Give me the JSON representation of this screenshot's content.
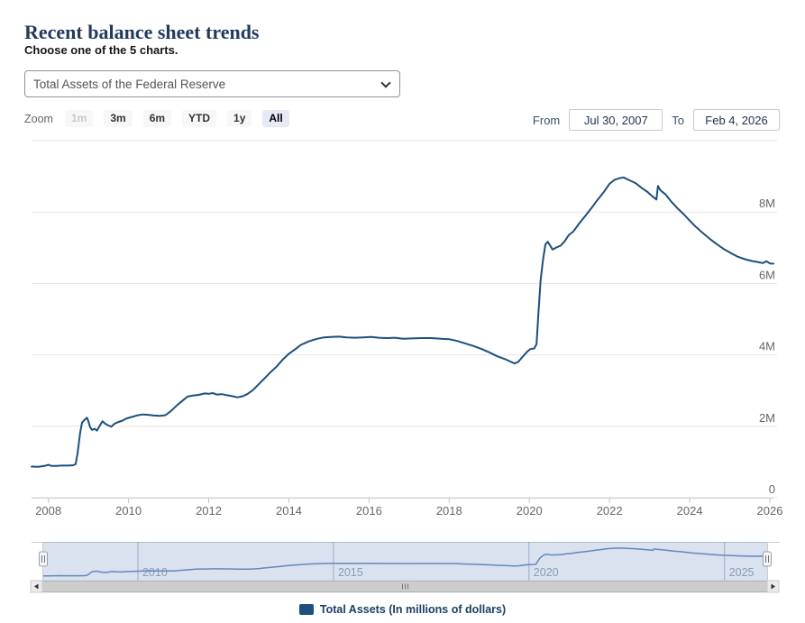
{
  "header": {
    "title": "Recent balance sheet trends",
    "subtitle": "Choose one of the 5 charts."
  },
  "chart_selector": {
    "selected": "Total Assets of the Federal Reserve",
    "options": [
      "Total Assets of the Federal Reserve"
    ]
  },
  "toolbar": {
    "zoom_label": "Zoom",
    "buttons": [
      {
        "label": "1m",
        "state": "disabled"
      },
      {
        "label": "3m",
        "state": "normal"
      },
      {
        "label": "6m",
        "state": "normal"
      },
      {
        "label": "YTD",
        "state": "normal"
      },
      {
        "label": "1y",
        "state": "normal"
      },
      {
        "label": "All",
        "state": "selected"
      }
    ],
    "range": {
      "from_label": "From",
      "from_value": "Jul 30, 2007",
      "to_label": "To",
      "to_value": "Feb 4, 2026"
    }
  },
  "chart_data": {
    "type": "line",
    "title": "Total Assets of the Federal Reserve",
    "xlabel": "",
    "ylabel": "",
    "units": "millions of dollars",
    "y_axis_side": "right",
    "grid": true,
    "x_range": [
      2007.58,
      2026.09
    ],
    "y_range": [
      0,
      10000000
    ],
    "x_ticks": [
      2008,
      2010,
      2012,
      2014,
      2016,
      2018,
      2020,
      2022,
      2024,
      2026
    ],
    "y_ticks": [
      {
        "value": 0,
        "label": "0"
      },
      {
        "value": 2000000,
        "label": "2M"
      },
      {
        "value": 4000000,
        "label": "4M"
      },
      {
        "value": 6000000,
        "label": "6M"
      },
      {
        "value": 8000000,
        "label": "8M"
      },
      {
        "value": 10000000,
        "label": ""
      }
    ],
    "legend_position": "bottom-center",
    "series": [
      {
        "name": "Total Assets (In millions of dollars)",
        "color": "#1c4f7e",
        "points": [
          [
            2007.58,
            870000
          ],
          [
            2007.75,
            865000
          ],
          [
            2007.9,
            890000
          ],
          [
            2008.0,
            920000
          ],
          [
            2008.08,
            890000
          ],
          [
            2008.2,
            890000
          ],
          [
            2008.33,
            900000
          ],
          [
            2008.5,
            900000
          ],
          [
            2008.62,
            910000
          ],
          [
            2008.68,
            940000
          ],
          [
            2008.73,
            1250000
          ],
          [
            2008.79,
            1800000
          ],
          [
            2008.84,
            2100000
          ],
          [
            2008.9,
            2180000
          ],
          [
            2008.96,
            2240000
          ],
          [
            2009.0,
            2140000
          ],
          [
            2009.04,
            1980000
          ],
          [
            2009.09,
            1900000
          ],
          [
            2009.15,
            1930000
          ],
          [
            2009.21,
            1880000
          ],
          [
            2009.29,
            2030000
          ],
          [
            2009.35,
            2140000
          ],
          [
            2009.42,
            2070000
          ],
          [
            2009.5,
            2020000
          ],
          [
            2009.57,
            1990000
          ],
          [
            2009.65,
            2070000
          ],
          [
            2009.75,
            2120000
          ],
          [
            2009.85,
            2160000
          ],
          [
            2009.95,
            2220000
          ],
          [
            2010.08,
            2260000
          ],
          [
            2010.2,
            2300000
          ],
          [
            2010.35,
            2330000
          ],
          [
            2010.5,
            2320000
          ],
          [
            2010.63,
            2300000
          ],
          [
            2010.78,
            2290000
          ],
          [
            2010.92,
            2310000
          ],
          [
            2011.05,
            2420000
          ],
          [
            2011.2,
            2580000
          ],
          [
            2011.35,
            2720000
          ],
          [
            2011.47,
            2830000
          ],
          [
            2011.6,
            2860000
          ],
          [
            2011.75,
            2880000
          ],
          [
            2011.9,
            2920000
          ],
          [
            2012.0,
            2910000
          ],
          [
            2012.1,
            2930000
          ],
          [
            2012.2,
            2890000
          ],
          [
            2012.33,
            2900000
          ],
          [
            2012.45,
            2870000
          ],
          [
            2012.6,
            2840000
          ],
          [
            2012.72,
            2810000
          ],
          [
            2012.85,
            2840000
          ],
          [
            2012.96,
            2900000
          ],
          [
            2013.1,
            3010000
          ],
          [
            2013.25,
            3180000
          ],
          [
            2013.4,
            3350000
          ],
          [
            2013.55,
            3520000
          ],
          [
            2013.7,
            3680000
          ],
          [
            2013.85,
            3870000
          ],
          [
            2014.0,
            4030000
          ],
          [
            2014.15,
            4150000
          ],
          [
            2014.3,
            4280000
          ],
          [
            2014.5,
            4380000
          ],
          [
            2014.7,
            4450000
          ],
          [
            2014.88,
            4490000
          ],
          [
            2015.05,
            4500000
          ],
          [
            2015.25,
            4510000
          ],
          [
            2015.45,
            4490000
          ],
          [
            2015.65,
            4480000
          ],
          [
            2015.85,
            4490000
          ],
          [
            2016.05,
            4500000
          ],
          [
            2016.25,
            4480000
          ],
          [
            2016.45,
            4470000
          ],
          [
            2016.65,
            4480000
          ],
          [
            2016.85,
            4450000
          ],
          [
            2017.05,
            4460000
          ],
          [
            2017.3,
            4470000
          ],
          [
            2017.55,
            4470000
          ],
          [
            2017.8,
            4450000
          ],
          [
            2018.0,
            4440000
          ],
          [
            2018.2,
            4390000
          ],
          [
            2018.4,
            4320000
          ],
          [
            2018.6,
            4250000
          ],
          [
            2018.8,
            4170000
          ],
          [
            2019.0,
            4070000
          ],
          [
            2019.2,
            3960000
          ],
          [
            2019.4,
            3880000
          ],
          [
            2019.55,
            3800000
          ],
          [
            2019.63,
            3760000
          ],
          [
            2019.72,
            3800000
          ],
          [
            2019.82,
            3930000
          ],
          [
            2019.93,
            4070000
          ],
          [
            2020.02,
            4160000
          ],
          [
            2020.12,
            4180000
          ],
          [
            2020.18,
            4300000
          ],
          [
            2020.23,
            5250000
          ],
          [
            2020.28,
            6080000
          ],
          [
            2020.34,
            6650000
          ],
          [
            2020.4,
            7090000
          ],
          [
            2020.46,
            7170000
          ],
          [
            2020.52,
            7060000
          ],
          [
            2020.58,
            6950000
          ],
          [
            2020.68,
            7010000
          ],
          [
            2020.78,
            7060000
          ],
          [
            2020.88,
            7180000
          ],
          [
            2020.98,
            7350000
          ],
          [
            2021.1,
            7460000
          ],
          [
            2021.25,
            7690000
          ],
          [
            2021.4,
            7900000
          ],
          [
            2021.55,
            8110000
          ],
          [
            2021.7,
            8340000
          ],
          [
            2021.85,
            8550000
          ],
          [
            2022.0,
            8790000
          ],
          [
            2022.12,
            8900000
          ],
          [
            2022.25,
            8950000
          ],
          [
            2022.35,
            8970000
          ],
          [
            2022.5,
            8890000
          ],
          [
            2022.65,
            8810000
          ],
          [
            2022.8,
            8680000
          ],
          [
            2022.95,
            8560000
          ],
          [
            2023.08,
            8430000
          ],
          [
            2023.17,
            8350000
          ],
          [
            2023.21,
            8730000
          ],
          [
            2023.27,
            8610000
          ],
          [
            2023.4,
            8490000
          ],
          [
            2023.55,
            8280000
          ],
          [
            2023.7,
            8100000
          ],
          [
            2023.85,
            7940000
          ],
          [
            2024.0,
            7760000
          ],
          [
            2024.15,
            7590000
          ],
          [
            2024.3,
            7440000
          ],
          [
            2024.5,
            7250000
          ],
          [
            2024.7,
            7080000
          ],
          [
            2024.87,
            6950000
          ],
          [
            2025.03,
            6850000
          ],
          [
            2025.2,
            6750000
          ],
          [
            2025.38,
            6680000
          ],
          [
            2025.55,
            6630000
          ],
          [
            2025.7,
            6600000
          ],
          [
            2025.82,
            6570000
          ],
          [
            2025.92,
            6620000
          ],
          [
            2026.0,
            6560000
          ],
          [
            2026.09,
            6555000
          ]
        ]
      }
    ]
  },
  "navigator": {
    "x_label_years": [
      2010,
      2015,
      2020,
      2025
    ],
    "line_color": "#6286ba",
    "mask_color": "rgba(108,138,196,0.25)",
    "gridline_color": "#aab4c2",
    "label_color": "#95a0ad"
  },
  "legend": {
    "label": "Total Assets (In millions of dollars)",
    "color": "#1c4f7e"
  },
  "colors": {
    "grid": "#e6e6e6",
    "axis_label": "#666666",
    "axis_line": "#c7cdd6",
    "selected_button_bg": "#e5eaf5"
  }
}
